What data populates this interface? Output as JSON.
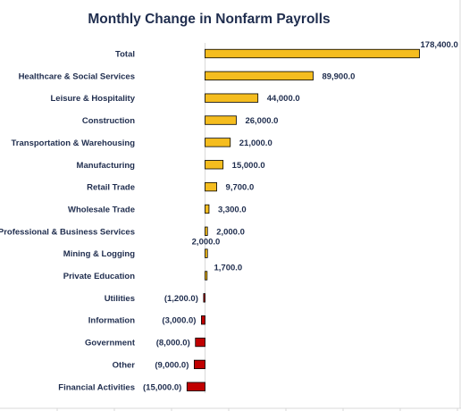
{
  "chart_data": {
    "type": "bar",
    "orientation": "horizontal",
    "title": "Monthly Change in Nonfarm Payrolls",
    "xlabel": "",
    "ylabel": "",
    "grid": false,
    "legend": "none",
    "xlim": [
      -30000,
      200000
    ],
    "categories": [
      "Total",
      "Healthcare & Social Services",
      "Leisure & Hospitality",
      "Construction",
      "Transportation & Warehousing",
      "Manufacturing",
      "Retail Trade",
      "Wholesale Trade",
      "Professional & Business Services",
      "Mining & Logging",
      "Private Education",
      "Utilities",
      "Information",
      "Government",
      "Other",
      "Financial Activities"
    ],
    "values": [
      178400,
      89900,
      44000,
      26000,
      21000,
      15000,
      9700,
      3300,
      2000,
      2000,
      1700,
      -1200,
      -3000,
      -8000,
      -9000,
      -15000
    ],
    "value_labels": [
      "178,400.0",
      "89,900.0",
      "44,000.0",
      "26,000.0",
      "21,000.0",
      "15,000.0",
      "9,700.0",
      "3,300.0",
      "2,000.0",
      "2,000.0",
      "1,700.0",
      "(1,200.0)",
      "(3,000.0)",
      "(8,000.0)",
      "(9,000.0)",
      "(15,000.0)"
    ],
    "colors": {
      "positive": "#f5bd1f",
      "negative": "#c00000",
      "outline": "#000000",
      "text": "#1f2d4e",
      "axis": "#d9d9d9"
    }
  }
}
